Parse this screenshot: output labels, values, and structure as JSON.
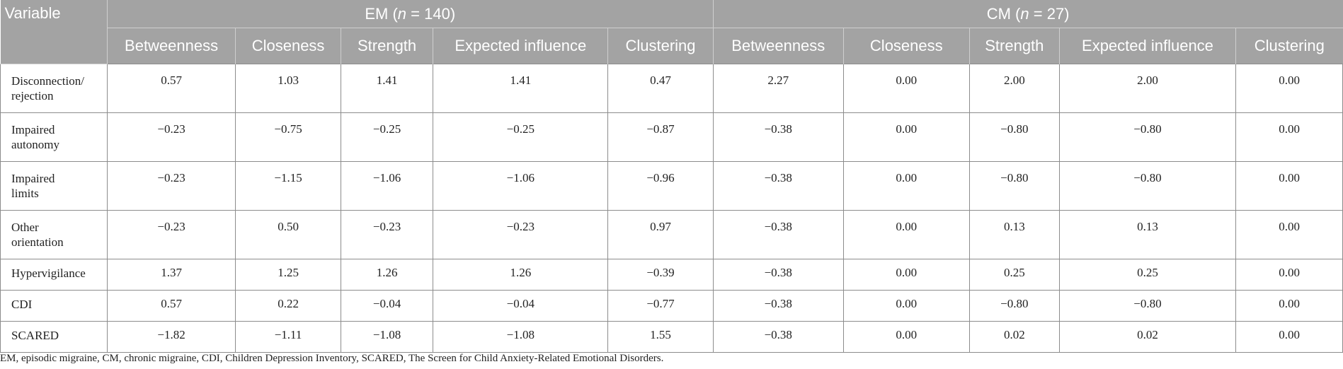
{
  "table": {
    "variable_header": "Variable",
    "groups": [
      {
        "label_prefix": "EM (",
        "n_symbol": "n",
        "label_suffix": " = 140)"
      },
      {
        "label_prefix": "CM (",
        "n_symbol": "n",
        "label_suffix": " = 27)"
      }
    ],
    "metric_headers": [
      "Betweenness",
      "Closeness",
      "Strength",
      "Expected influence",
      "Clustering"
    ],
    "rows": [
      {
        "label": [
          "Disconnection/",
          "rejection"
        ],
        "em": [
          "0.57",
          "1.03",
          "1.41",
          "1.41",
          "0.47"
        ],
        "cm": [
          "2.27",
          "0.00",
          "2.00",
          "2.00",
          "0.00"
        ]
      },
      {
        "label": [
          "Impaired",
          "autonomy"
        ],
        "em": [
          "−0.23",
          "−0.75",
          "−0.25",
          "−0.25",
          "−0.87"
        ],
        "cm": [
          "−0.38",
          "0.00",
          "−0.80",
          "−0.80",
          "0.00"
        ]
      },
      {
        "label": [
          "Impaired",
          "limits"
        ],
        "em": [
          "−0.23",
          "−1.15",
          "−1.06",
          "−1.06",
          "−0.96"
        ],
        "cm": [
          "−0.38",
          "0.00",
          "−0.80",
          "−0.80",
          "0.00"
        ]
      },
      {
        "label": [
          "Other",
          "orientation"
        ],
        "em": [
          "−0.23",
          "0.50",
          "−0.23",
          "−0.23",
          "0.97"
        ],
        "cm": [
          "−0.38",
          "0.00",
          "0.13",
          "0.13",
          "0.00"
        ]
      },
      {
        "label": [
          "Hypervigilance"
        ],
        "em": [
          "1.37",
          "1.25",
          "1.26",
          "1.26",
          "−0.39"
        ],
        "cm": [
          "−0.38",
          "0.00",
          "0.25",
          "0.25",
          "0.00"
        ]
      },
      {
        "label": [
          "CDI"
        ],
        "em": [
          "0.57",
          "0.22",
          "−0.04",
          "−0.04",
          "−0.77"
        ],
        "cm": [
          "−0.38",
          "0.00",
          "−0.80",
          "−0.80",
          "0.00"
        ]
      },
      {
        "label": [
          "SCARED"
        ],
        "em": [
          "−1.82",
          "−1.11",
          "−1.08",
          "−1.08",
          "1.55"
        ],
        "cm": [
          "−0.38",
          "0.00",
          "0.02",
          "0.02",
          "0.00"
        ]
      }
    ]
  },
  "footnote": "EM, episodic migraine, CM, chronic migraine, CDI, Children Depression Inventory, SCARED, The Screen for Child Anxiety-Related Emotional Disorders."
}
